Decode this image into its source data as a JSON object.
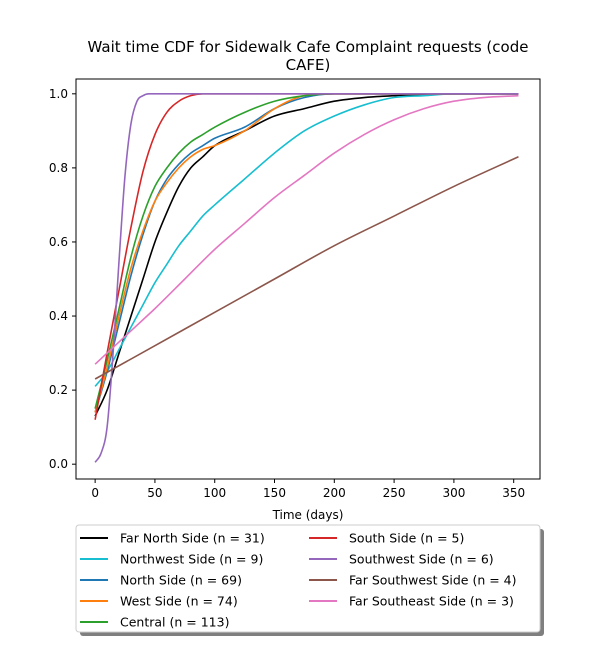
{
  "chart_data": {
    "type": "line",
    "title_line1": "Wait time CDF for Sidewalk Cafe Complaint  requests (code",
    "title_line2": "CAFE)",
    "xlabel": "Time (days)",
    "ylabel": "",
    "xlim": [
      -16,
      372
    ],
    "ylim": [
      -0.04,
      1.04
    ],
    "xticks": [
      0,
      50,
      100,
      150,
      200,
      250,
      300,
      350
    ],
    "yticks": [
      0.0,
      0.2,
      0.4,
      0.6,
      0.8,
      1.0
    ],
    "ytick_labels": [
      "0.0",
      "0.2",
      "0.4",
      "0.6",
      "0.8",
      "1.0"
    ],
    "grid": false,
    "legend_position": "bottom",
    "series": [
      {
        "name": "Far North Side (n = 31)",
        "color": "#000000",
        "x": [
          0,
          10,
          20,
          30,
          40,
          50,
          60,
          70,
          80,
          90,
          100,
          125,
          150,
          175,
          200,
          225,
          250,
          300,
          354
        ],
        "y": [
          0.13,
          0.2,
          0.3,
          0.4,
          0.5,
          0.6,
          0.68,
          0.75,
          0.8,
          0.83,
          0.86,
          0.9,
          0.94,
          0.96,
          0.98,
          0.99,
          0.995,
          1.0,
          1.0
        ]
      },
      {
        "name": "Northwest Side (n = 9)",
        "color": "#17becf",
        "x": [
          0,
          10,
          20,
          30,
          40,
          50,
          60,
          70,
          80,
          90,
          100,
          125,
          150,
          175,
          200,
          225,
          250,
          275,
          300,
          354
        ],
        "y": [
          0.21,
          0.25,
          0.31,
          0.37,
          0.43,
          0.49,
          0.54,
          0.59,
          0.63,
          0.67,
          0.7,
          0.77,
          0.84,
          0.9,
          0.94,
          0.97,
          0.99,
          0.995,
          1.0,
          1.0
        ]
      },
      {
        "name": "North Side (n = 69)",
        "color": "#1f77b4",
        "x": [
          0,
          10,
          20,
          30,
          40,
          50,
          60,
          70,
          80,
          90,
          100,
          125,
          150,
          175,
          200,
          354
        ],
        "y": [
          0.14,
          0.25,
          0.38,
          0.51,
          0.62,
          0.71,
          0.77,
          0.81,
          0.84,
          0.86,
          0.88,
          0.91,
          0.96,
          0.99,
          1.0,
          1.0
        ]
      },
      {
        "name": "West Side (n = 74)",
        "color": "#ff7f0e",
        "x": [
          0,
          10,
          20,
          30,
          40,
          50,
          60,
          70,
          80,
          90,
          100,
          125,
          150,
          175,
          200,
          354
        ],
        "y": [
          0.14,
          0.26,
          0.4,
          0.53,
          0.63,
          0.71,
          0.76,
          0.8,
          0.83,
          0.85,
          0.86,
          0.9,
          0.96,
          0.995,
          1.0,
          1.0
        ]
      },
      {
        "name": "Central (n = 113)",
        "color": "#2ca02c",
        "x": [
          0,
          10,
          20,
          30,
          40,
          50,
          60,
          70,
          80,
          90,
          100,
          125,
          150,
          175,
          200,
          354
        ],
        "y": [
          0.15,
          0.28,
          0.42,
          0.56,
          0.67,
          0.75,
          0.8,
          0.84,
          0.87,
          0.89,
          0.91,
          0.95,
          0.98,
          0.995,
          1.0,
          1.0
        ]
      },
      {
        "name": "South Side (n = 5)",
        "color": "#d62728",
        "x": [
          0,
          10,
          20,
          30,
          40,
          50,
          60,
          70,
          80,
          90,
          100,
          354
        ],
        "y": [
          0.12,
          0.3,
          0.47,
          0.64,
          0.79,
          0.89,
          0.95,
          0.98,
          0.995,
          1.0,
          1.0,
          1.0
        ]
      },
      {
        "name": "Southwest Side (n = 6)",
        "color": "#9467bd",
        "x": [
          0,
          5,
          10,
          15,
          20,
          25,
          30,
          35,
          40,
          45,
          50,
          60,
          354
        ],
        "y": [
          0.005,
          0.03,
          0.1,
          0.3,
          0.55,
          0.78,
          0.92,
          0.98,
          0.995,
          1.0,
          1.0,
          1.0,
          1.0
        ]
      },
      {
        "name": "Far Southwest Side (n = 4)",
        "color": "#8c564b",
        "x": [
          0,
          50,
          100,
          150,
          200,
          250,
          300,
          354
        ],
        "y": [
          0.23,
          0.32,
          0.41,
          0.5,
          0.59,
          0.67,
          0.75,
          0.83
        ]
      },
      {
        "name": "Far Southeast Side (n = 3)",
        "color": "#e377c2",
        "x": [
          0,
          10,
          20,
          30,
          40,
          50,
          75,
          100,
          125,
          150,
          175,
          200,
          225,
          250,
          275,
          300,
          325,
          354
        ],
        "y": [
          0.27,
          0.3,
          0.33,
          0.36,
          0.39,
          0.42,
          0.5,
          0.58,
          0.65,
          0.72,
          0.78,
          0.84,
          0.89,
          0.93,
          0.96,
          0.98,
          0.99,
          0.995
        ]
      }
    ]
  }
}
